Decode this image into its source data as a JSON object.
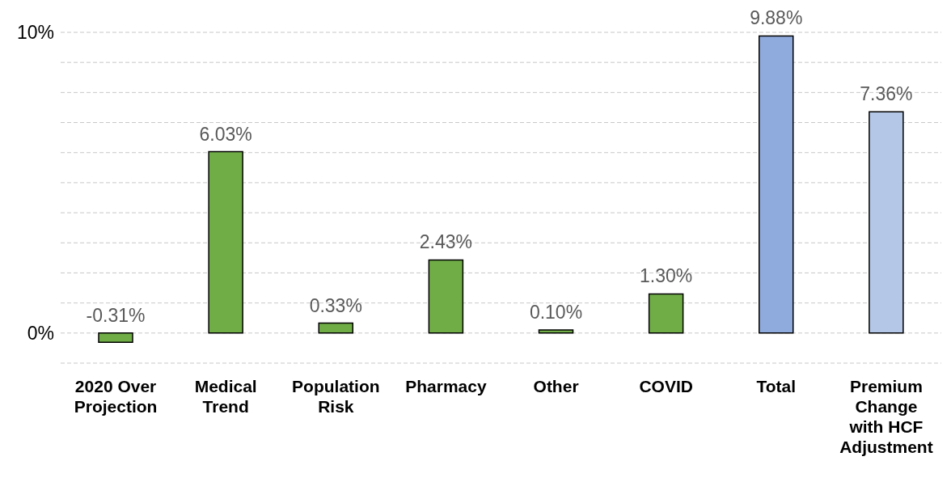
{
  "chart_data": {
    "type": "bar",
    "categories": [
      "2020 Over Projection",
      "Medical Trend",
      "Population Risk",
      "Pharmacy",
      "Other",
      "COVID",
      "Total",
      "Premium Change with HCF Adjustment"
    ],
    "values": [
      -0.31,
      6.03,
      0.33,
      2.43,
      0.1,
      1.3,
      9.88,
      7.36
    ],
    "colors": [
      "#70ad47",
      "#70ad47",
      "#70ad47",
      "#70ad47",
      "#70ad47",
      "#70ad47",
      "#8faadc",
      "#b4c7e7"
    ],
    "value_labels": [
      "-0.31%",
      "6.03%",
      "0.33%",
      "2.43%",
      "0.10%",
      "1.30%",
      "9.88%",
      "7.36%"
    ],
    "ylim": [
      -1,
      10
    ],
    "yticks": [
      {
        "value": -1,
        "label": null
      },
      {
        "value": 0,
        "label": "0%"
      },
      {
        "value": 1,
        "label": null
      },
      {
        "value": 2,
        "label": null
      },
      {
        "value": 3,
        "label": null
      },
      {
        "value": 4,
        "label": null
      },
      {
        "value": 5,
        "label": null
      },
      {
        "value": 6,
        "label": null
      },
      {
        "value": 7,
        "label": null
      },
      {
        "value": 8,
        "label": null
      },
      {
        "value": 9,
        "label": null
      },
      {
        "value": 10,
        "label": "10%"
      }
    ],
    "grid": "y"
  }
}
